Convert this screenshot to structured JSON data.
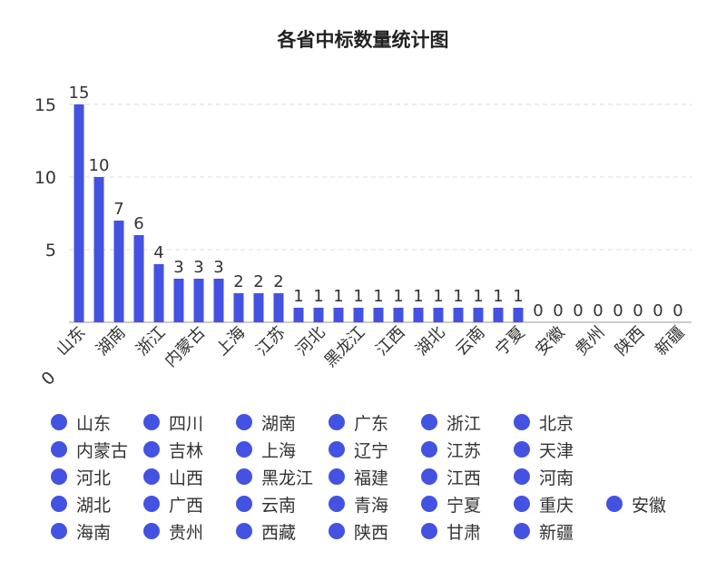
{
  "chart_data": {
    "type": "bar",
    "title": "各省中标数量统计图",
    "xlabel": "",
    "ylabel": "",
    "ylim": [
      0,
      15
    ],
    "yticks": [
      0,
      5,
      10,
      15
    ],
    "grid": true,
    "legend_position": "bottom",
    "color": "#4352e0",
    "categories": [
      "山东",
      "四川",
      "湖南",
      "广东",
      "浙江",
      "北京",
      "内蒙古",
      "吉林",
      "上海",
      "辽宁",
      "江苏",
      "天津",
      "河北",
      "山西",
      "黑龙江",
      "福建",
      "江西",
      "河南",
      "湖北",
      "广西",
      "云南",
      "青海",
      "宁夏",
      "重庆",
      "安徽",
      "海南",
      "贵州",
      "西藏",
      "陕西",
      "甘肃",
      "新疆"
    ],
    "values": [
      15,
      10,
      7,
      6,
      4,
      3,
      3,
      3,
      2,
      2,
      2,
      1,
      1,
      1,
      1,
      1,
      1,
      1,
      1,
      1,
      1,
      1,
      1,
      0,
      0,
      0,
      0,
      0,
      0,
      0,
      0
    ]
  }
}
